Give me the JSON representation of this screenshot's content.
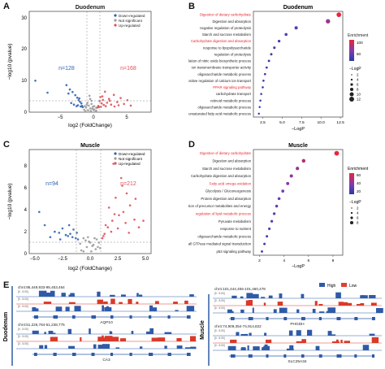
{
  "figure": {
    "panel_labels": [
      "A",
      "B",
      "C",
      "D",
      "E"
    ],
    "volcano_legend": [
      "Down-regulated",
      "Not significant",
      "Up-regulated"
    ],
    "colors": {
      "down": "#2f64b0",
      "ns": "#9a9a9a",
      "up": "#e0505a",
      "sig_term": "#e8262c",
      "low": "#e04030",
      "high": "#2f5aa8"
    }
  },
  "panel_a": {
    "title": "Duodenum",
    "xlabel": "log2 (FoldChange)",
    "ylabel": "−log10 (pvalue)",
    "xticks": [
      "−5",
      "0",
      "5"
    ],
    "yticks": [
      "0",
      "10",
      "20",
      "30"
    ],
    "n_down": "n=128",
    "n_up": "n=168"
  },
  "panel_c": {
    "title": "Muscle",
    "xlabel": "log2 (FoldChange)",
    "ylabel": "−log10 (pvalue)",
    "xticks": [
      "−5.0",
      "−2.5",
      "0.0",
      "2.5",
      "5.0"
    ],
    "yticks": [
      "0",
      "2",
      "4",
      "6",
      "8"
    ],
    "n_down": "n=94",
    "n_up": "n=212"
  },
  "panel_b": {
    "title": "Duodenum",
    "xlabel": "−LogP",
    "xticks": [
      "2.5",
      "5.0",
      "7.5",
      "10.0",
      "12.5"
    ],
    "enrichment_label": "Enrichment",
    "enrichment_ticks": [
      "100",
      "50"
    ],
    "size_label": "−LogP",
    "size_ticks": [
      "2",
      "4",
      "6",
      "8",
      "10",
      "12"
    ]
  },
  "panel_d": {
    "title": "Muscle",
    "xlabel": "−LogP",
    "xticks": [
      "2",
      "4",
      "6",
      "8"
    ],
    "enrichment_label": "Enrichment",
    "enrichment_ticks": [
      "60",
      "40",
      "20"
    ],
    "size_label": "−LogP",
    "size_ticks": [
      "2",
      "4",
      "6",
      "8"
    ]
  },
  "panel_e": {
    "tissue_left": "Duodenum",
    "tissue_right": "Muscle",
    "legend": [
      "High",
      "Low"
    ],
    "tracks": [
      {
        "locus": "chr4:95,449,933-95,453,464",
        "gene": "AQP10",
        "scale": "[0 - 5.00]"
      },
      {
        "locus": "chr4:51,226,784-51,238,775",
        "gene": "CA3",
        "scale": "[0 - 5.00]"
      },
      {
        "locus": "chr4:101,444,455-101,460,478",
        "gene": "PHGDH",
        "scale": "[0 - 5.00]"
      },
      {
        "locus": "chr4:74,909,354-74,914,822",
        "gene": "SLC25A34",
        "scale": "[0 - 5.00]"
      }
    ]
  },
  "chart_data": [
    {
      "type": "scatter",
      "panel": "A",
      "title": "Duodenum",
      "xlabel": "log2 (FoldChange)",
      "ylabel": "−log10 (pvalue)",
      "xlim": [
        -9,
        9
      ],
      "ylim": [
        0,
        32
      ],
      "series": [
        {
          "name": "Down-regulated",
          "color": "#2f64b0",
          "x": [
            -8.1,
            -6.3,
            -3.5,
            -3.0,
            -2.6,
            -2.2,
            -1.9,
            -1.7,
            -1.5,
            -1.3,
            -2.4,
            -1.8,
            -1.2,
            -2.0,
            -1.4,
            -1.1,
            -3.2,
            -2.8,
            -1.6
          ],
          "y": [
            10.0,
            6.2,
            8.6,
            7.2,
            6.4,
            5.4,
            4.6,
            3.8,
            3.3,
            2.8,
            2.4,
            2.2,
            2.0,
            1.9,
            1.8,
            1.6,
            5.9,
            2.9,
            4.4
          ]
        },
        {
          "name": "Not significant",
          "color": "#9a9a9a",
          "x": [
            -0.9,
            -0.6,
            -0.4,
            -0.2,
            0.0,
            0.2,
            0.4,
            0.6,
            0.9,
            -0.7,
            -0.3,
            0.1,
            0.3,
            0.5,
            0.8,
            -0.5,
            0.0,
            0.2,
            -0.1,
            0.6,
            0.9,
            -0.8
          ],
          "y": [
            0.8,
            1.5,
            3.0,
            2.1,
            4.2,
            2.6,
            1.7,
            0.9,
            0.5,
            0.3,
            0.6,
            0.4,
            1.1,
            0.7,
            0.2,
            2.4,
            1.2,
            3.6,
            5.2,
            1.9,
            1.4,
            1.9
          ]
        },
        {
          "name": "Up-regulated",
          "color": "#e0505a",
          "x": [
            1.2,
            1.4,
            1.6,
            1.8,
            2.0,
            2.2,
            2.5,
            2.8,
            3.1,
            3.5,
            4.0,
            4.5,
            5.0,
            5.5,
            6.0,
            1.3,
            1.7,
            2.3,
            2.9,
            3.6,
            4.2,
            1.1,
            1.5,
            1.9
          ],
          "y": [
            2.0,
            3.5,
            1.7,
            5.0,
            2.3,
            6.5,
            3.0,
            4.2,
            2.4,
            5.5,
            3.2,
            4.5,
            2.6,
            3.8,
            2.1,
            1.6,
            2.8,
            1.9,
            3.6,
            1.8,
            2.2,
            1.5,
            4.8,
            3.9
          ]
        }
      ]
    },
    {
      "type": "scatter",
      "panel": "C",
      "title": "Muscle",
      "xlabel": "log2 (FoldChange)",
      "ylabel": "−log10 (pvalue)",
      "xlim": [
        -5.5,
        5.5
      ],
      "ylim": [
        0,
        9.5
      ],
      "series": [
        {
          "name": "Down-regulated",
          "color": "#2f64b0",
          "x": [
            -4.6,
            -4.1,
            -3.2,
            -2.8,
            -2.5,
            -2.2,
            -1.9,
            -1.6,
            -1.3,
            -1.1,
            -2.0,
            -1.5,
            -2.7,
            -3.6,
            -1.8,
            -1.2
          ],
          "y": [
            3.8,
            2.6,
            2.0,
            1.9,
            2.3,
            1.7,
            2.6,
            1.5,
            1.4,
            1.3,
            1.6,
            2.2,
            1.3,
            1.5,
            1.8,
            1.9
          ]
        },
        {
          "name": "Not significant",
          "color": "#9a9a9a",
          "x": [
            -0.9,
            -0.6,
            -0.3,
            0.0,
            0.3,
            0.6,
            0.9,
            -0.8,
            -0.4,
            0.1,
            0.5,
            0.8,
            -0.2,
            0.2,
            -0.6,
            0.7,
            -0.1,
            0.4
          ],
          "y": [
            0.9,
            1.4,
            0.6,
            1.0,
            0.8,
            1.3,
            0.5,
            0.3,
            1.2,
            0.2,
            0.4,
            1.0,
            1.5,
            0.7,
            0.2,
            0.6,
            1.1,
            1.4
          ]
        },
        {
          "name": "Up-regulated",
          "color": "#e0505a",
          "x": [
            1.1,
            1.4,
            1.7,
            2.0,
            2.3,
            2.6,
            2.9,
            3.2,
            3.6,
            4.0,
            4.4,
            1.3,
            1.9,
            2.5,
            3.0,
            3.5,
            2.1,
            2.8,
            1.6,
            3.3,
            1.2,
            2.2,
            4.8,
            4.1
          ],
          "y": [
            1.4,
            2.6,
            4.2,
            3.0,
            5.1,
            3.5,
            6.2,
            2.8,
            4.4,
            3.1,
            2.4,
            1.8,
            2.0,
            2.3,
            3.8,
            1.9,
            8.2,
            6.9,
            2.4,
            5.5,
            1.6,
            3.6,
            3.0,
            5.0
          ]
        }
      ]
    },
    {
      "type": "scatter",
      "panel": "B",
      "title": "Duodenum",
      "xlabel": "−LogP",
      "xlim": [
        1.3,
        12.8
      ],
      "terms": [
        {
          "term": "Digestion of dietary carbohydrate",
          "logp": 12.3,
          "enrichment": 150,
          "highlight": true
        },
        {
          "term": "Digestion and absorption",
          "logp": 10.9,
          "enrichment": 95,
          "highlight": false
        },
        {
          "term": "negative regulation of proteolysis",
          "logp": 6.8,
          "enrichment": 45,
          "highlight": false
        },
        {
          "term": "Starch and sucrose metabolism",
          "logp": 5.5,
          "enrichment": 35,
          "highlight": false
        },
        {
          "term": "Carbohydrate digestion and absorption",
          "logp": 4.6,
          "enrichment": 30,
          "highlight": true
        },
        {
          "term": "response to lipopolysaccharide",
          "logp": 4.0,
          "enrichment": 25,
          "highlight": false
        },
        {
          "term": "regulation of proteolysis",
          "logp": 3.6,
          "enrichment": 20,
          "highlight": false
        },
        {
          "term": "positive regulation of nitric oxide biosynthetic process",
          "logp": 3.3,
          "enrichment": 18,
          "highlight": false
        },
        {
          "term": "ion transmembrane transporter activity",
          "logp": 3.0,
          "enrichment": 16,
          "highlight": false
        },
        {
          "term": "oligosaccharide metabolic process",
          "logp": 2.8,
          "enrichment": 15,
          "highlight": false
        },
        {
          "term": "positive regulation of calcium ion transport",
          "logp": 2.6,
          "enrichment": 13,
          "highlight": false
        },
        {
          "term": "PPAR signaling pathway",
          "logp": 2.5,
          "enrichment": 12,
          "highlight": true
        },
        {
          "term": "carbohydrate transport",
          "logp": 2.3,
          "enrichment": 11,
          "highlight": false
        },
        {
          "term": "retinoid metabolic process",
          "logp": 2.2,
          "enrichment": 10,
          "highlight": false
        },
        {
          "term": "oligosaccharide metabolic process",
          "logp": 2.1,
          "enrichment": 9,
          "highlight": false
        },
        {
          "term": "unsaturated fatty acid metabolic process",
          "logp": 2.0,
          "enrichment": 8,
          "highlight": false
        }
      ]
    },
    {
      "type": "scatter",
      "panel": "D",
      "title": "Muscle",
      "xlabel": "−LogP",
      "xlim": [
        1.5,
        8.8
      ],
      "terms": [
        {
          "term": "Digestion of dietary carbohydrate",
          "logp": 8.3,
          "enrichment": 70,
          "highlight": true
        },
        {
          "term": "Digestion and absorption",
          "logp": 5.6,
          "enrichment": 55,
          "highlight": false
        },
        {
          "term": "Starch and sucrose metabolism",
          "logp": 5.1,
          "enrichment": 45,
          "highlight": false
        },
        {
          "term": "Carbohydrate digestion and absorption",
          "logp": 4.6,
          "enrichment": 40,
          "highlight": false
        },
        {
          "term": "Fatty acid omega oxidation",
          "logp": 4.3,
          "enrichment": 38,
          "highlight": true
        },
        {
          "term": "Glycolysis / Gluconeogenesis",
          "logp": 3.9,
          "enrichment": 34,
          "highlight": false
        },
        {
          "term": "Protein digestion and absorption",
          "logp": 3.6,
          "enrichment": 30,
          "highlight": false
        },
        {
          "term": "generation of precursor metabolites and energy",
          "logp": 3.4,
          "enrichment": 27,
          "highlight": false
        },
        {
          "term": "regulation of lipid metabolic process",
          "logp": 3.2,
          "enrichment": 25,
          "highlight": true
        },
        {
          "term": "Pyruvate metabolism",
          "logp": 3.0,
          "enrichment": 22,
          "highlight": false
        },
        {
          "term": "response to nutrient",
          "logp": 2.8,
          "enrichment": 20,
          "highlight": false
        },
        {
          "term": "oligosaccharide metabolic process",
          "logp": 2.6,
          "enrichment": 18,
          "highlight": false
        },
        {
          "term": "positive regulation of small GTPase mediated signal transduction",
          "logp": 2.4,
          "enrichment": 15,
          "highlight": false
        },
        {
          "term": "p53 signaling pathway",
          "logp": 2.2,
          "enrichment": 12,
          "highlight": false
        }
      ]
    }
  ]
}
